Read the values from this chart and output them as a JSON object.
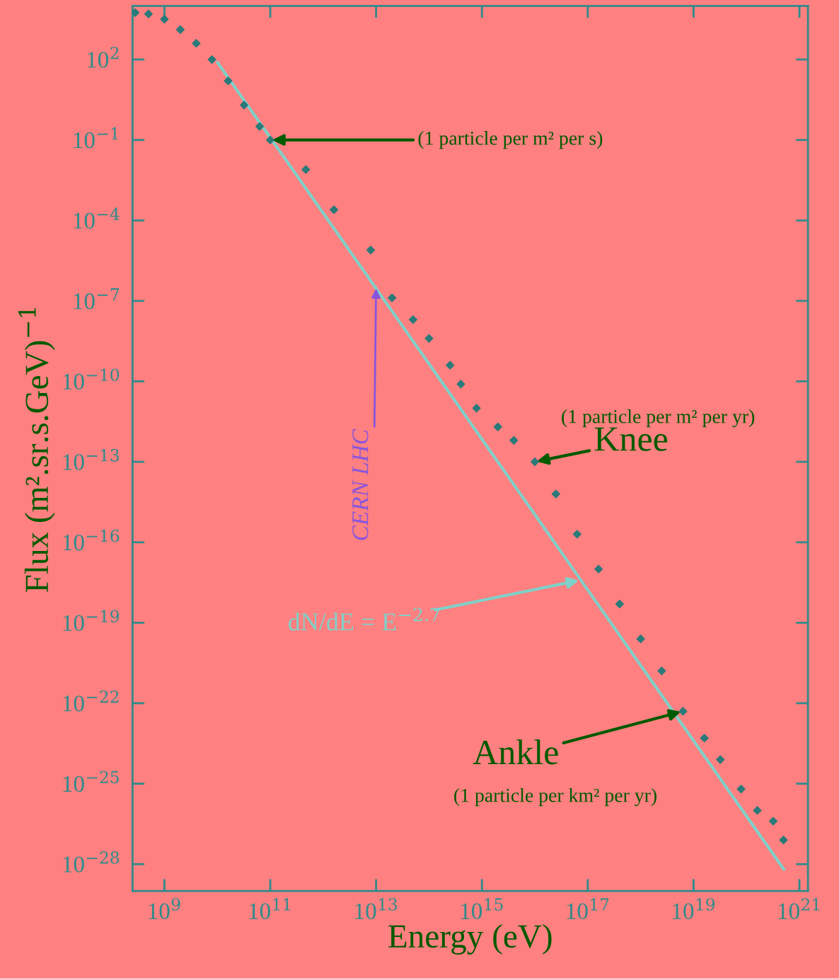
{
  "chart_data": {
    "type": "scatter",
    "xlabel": "Energy (eV)",
    "ylabel": "Flux (m².sr.s.GeV)$^{−1}$",
    "log": "xy",
    "grid": false,
    "legend": false,
    "xlim": [
      250000000.0,
      1.45e+21
    ],
    "ylim": [
      1e-29,
      10000.0
    ],
    "xticks": [
      {
        "value": 1000000000.0,
        "label": "10$^{9}$"
      },
      {
        "value": 100000000000.0,
        "label": "10$^{11}$"
      },
      {
        "value": 10000000000000.0,
        "label": "10$^{13}$"
      },
      {
        "value": 1000000000000000.0,
        "label": "10$^{15}$"
      },
      {
        "value": 1e+17,
        "label": "10$^{17}$"
      },
      {
        "value": 1e+19,
        "label": "10$^{19}$"
      },
      {
        "value": 1e+21,
        "label": "10$^{21}$"
      }
    ],
    "yticks": [
      {
        "value": 100.0,
        "label": "10$^{2}$"
      },
      {
        "value": 0.1,
        "label": "10$^{−1}$"
      },
      {
        "value": 0.0001,
        "label": "10$^{−4}$"
      },
      {
        "value": 1e-07,
        "label": "10$^{−7}$"
      },
      {
        "value": 1e-10,
        "label": "10$^{−10}$"
      },
      {
        "value": 1e-13,
        "label": "10$^{−13}$"
      },
      {
        "value": 1e-16,
        "label": "10$^{−16}$"
      },
      {
        "value": 1e-19,
        "label": "10$^{−19}$"
      },
      {
        "value": 1e-22,
        "label": "10$^{−22}$"
      },
      {
        "value": 1e-25,
        "label": "10$^{−25}$"
      },
      {
        "value": 1e-28,
        "label": "10$^{−28}$"
      }
    ],
    "series": [
      {
        "type": "scatter",
        "color": "#2a7a7a",
        "marker": "diamond",
        "x": [
          280000000.0,
          500000000.0,
          1000000000.0,
          2000000000.0,
          4000000000.0,
          7900000000.0,
          16000000000.0,
          32000000000.0,
          63000000000.0,
          100000000000.0,
          470000000000.0,
          1600000000000.0,
          7900000000000.0,
          20000000000000.0,
          50000000000000.0,
          100000000000000.0,
          250000000000000.0,
          400000000000000.0,
          790000000000000.0,
          2000000000000000.0,
          4000000000000000.0,
          1e+16,
          2.5e+16,
          6.3e+16,
          1.6e+17,
          4e+17,
          1e+18,
          2.5e+18,
          6.3e+18,
          1.6e+19,
          3.2e+19,
          7.9e+19,
          1.6e+20,
          3.2e+20,
          5e+20
        ],
        "values": [
          5600.0,
          5000.0,
          3200.0,
          1300.0,
          400.0,
          100.0,
          16,
          2.0,
          0.32,
          0.1,
          0.0079,
          0.00025,
          7.9e-06,
          1.3e-07,
          2e-08,
          4e-09,
          4e-10,
          7.9e-11,
          1e-11,
          2e-12,
          6.3e-13,
          1e-13,
          6.3e-15,
          2e-16,
          1e-17,
          5e-19,
          2.5e-20,
          1.6e-21,
          5e-23,
          5e-24,
          7.9e-25,
          6.3e-26,
          1e-26,
          4e-27,
          7.9e-28
        ]
      },
      {
        "type": "line",
        "color": "#7fd0c8",
        "x": [
          10000000000.0,
          10000000000000.0,
          7.4e+16,
          5.1e+20
        ],
        "values": [
          79,
          2.9e-07,
          3.9e-18,
          6.3e-29
        ]
      }
    ],
    "annotations": [
      {
        "text": "(1 particle per m² per s)",
        "x": 100000000000.0,
        "y": 0.1
      },
      {
        "text": "Knee",
        "x": 1e+16,
        "y": 1e-13
      },
      "(1 particle per m² per yr)",
      {
        "text": "Ankle",
        "x": 6.3e+18,
        "y": 5e-23
      },
      "(1 particle per km² per yr)",
      {
        "text": "dN/dE = E$^{−2.7}$",
        "x": 7.4e+16,
        "y": 3.9e-18
      },
      {
        "text": "CERN LHC",
        "x": 10000000000000.0,
        "y": 2.9e-07
      }
    ]
  }
}
